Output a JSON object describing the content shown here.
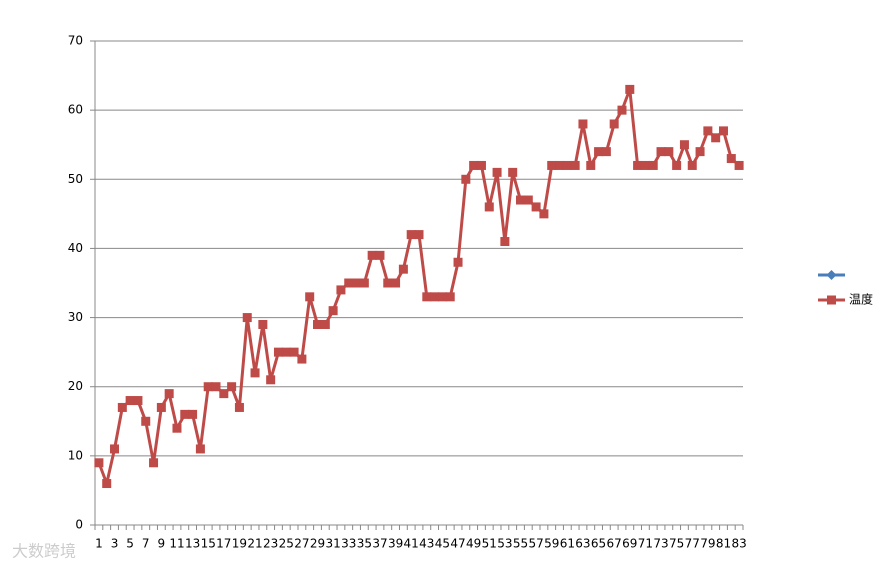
{
  "chart_data": {
    "type": "line",
    "categories": [
      1,
      null,
      3,
      null,
      5,
      null,
      7,
      null,
      9,
      null,
      11,
      null,
      13,
      null,
      15,
      null,
      17,
      null,
      19,
      null,
      21,
      null,
      23,
      null,
      25,
      null,
      27,
      null,
      29,
      null,
      31,
      null,
      33,
      null,
      35,
      null,
      37,
      null,
      39,
      null,
      41,
      null,
      43,
      null,
      45,
      null,
      47,
      null,
      49,
      null,
      51,
      null,
      53,
      null,
      55,
      null,
      57,
      null,
      59,
      null,
      61,
      null,
      63,
      null,
      65,
      null,
      67,
      null,
      69,
      null,
      71,
      null,
      73,
      null,
      75,
      null,
      77,
      null,
      79,
      null,
      81,
      null,
      83
    ],
    "series": [
      {
        "color": "#4a7ebb",
        "marker": "diamond",
        "values": [
          null,
          null,
          null,
          null,
          null,
          null,
          null,
          null,
          null,
          null,
          null,
          null,
          null,
          null,
          null,
          null,
          null,
          null,
          null,
          null,
          null,
          null,
          null,
          null,
          null,
          null,
          null,
          null,
          null,
          null,
          null,
          null,
          null,
          null,
          null,
          null,
          null,
          null,
          null,
          null,
          null,
          null,
          null,
          null,
          null,
          null,
          null,
          null,
          null,
          null,
          null,
          null,
          null,
          null,
          null,
          null,
          null,
          null,
          null,
          null,
          null,
          null,
          null,
          null,
          null,
          null,
          null,
          null,
          null,
          null,
          null,
          null,
          null,
          null,
          null,
          null,
          null,
          null,
          null,
          null,
          null,
          null,
          null
        ]
      },
      {
        "name": "温度",
        "color": "#be4b48",
        "marker": "square",
        "values": [
          9,
          6,
          11,
          17,
          18,
          18,
          15,
          9,
          17,
          19,
          14,
          16,
          16,
          11,
          20,
          20,
          19,
          20,
          17,
          30,
          22,
          29,
          21,
          25,
          25,
          25,
          24,
          33,
          29,
          29,
          31,
          34,
          35,
          35,
          35,
          39,
          39,
          35,
          35,
          37,
          42,
          42,
          33,
          33,
          33,
          33,
          38,
          50,
          52,
          52,
          46,
          51,
          41,
          51,
          47,
          47,
          46,
          45,
          52,
          52,
          52,
          52,
          58,
          52,
          54,
          54,
          58,
          60,
          63,
          52,
          52,
          52,
          54,
          54,
          52,
          55,
          52,
          54,
          57,
          56,
          57,
          53,
          52
        ]
      }
    ],
    "ylim": [
      0,
      70
    ],
    "yticks": [
      0,
      10,
      20,
      30,
      40,
      50,
      60,
      70
    ],
    "grid": true,
    "legend": "right"
  },
  "watermark": "大数跨境"
}
